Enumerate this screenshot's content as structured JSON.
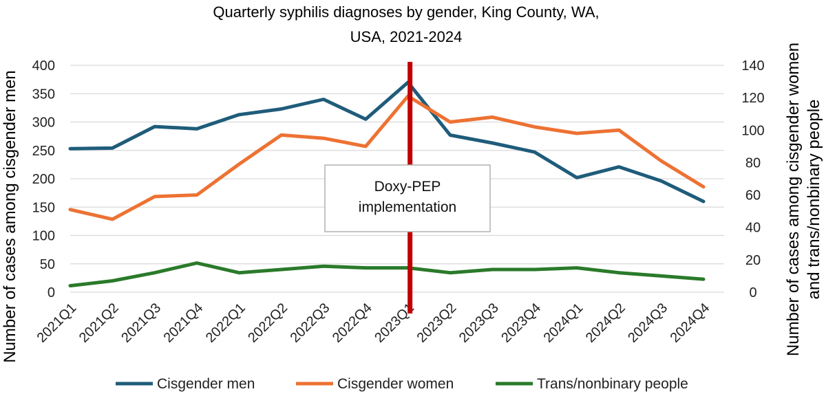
{
  "chart_data": {
    "type": "line",
    "title_lines": [
      "Quarterly syphilis diagnoses by gender, King County, WA,",
      "USA, 2021-2024"
    ],
    "categories": [
      "2021Q1",
      "2021Q2",
      "2021Q3",
      "2021Q4",
      "2022Q1",
      "2022Q2",
      "2022Q3",
      "2022Q4",
      "2023Q1",
      "2023Q2",
      "2023Q3",
      "2023Q4",
      "2024Q1",
      "2024Q2",
      "2024Q3",
      "2024Q4"
    ],
    "ylabel_left": "Number of cases among cisgender men",
    "ylabel_right_lines": [
      "Number of cases among cisgender women",
      "and trans/nonbinary people"
    ],
    "ylim_left": [
      0,
      400
    ],
    "yticks_left": [
      0,
      50,
      100,
      150,
      200,
      250,
      300,
      350,
      400
    ],
    "ylim_right": [
      0,
      140
    ],
    "yticks_right": [
      0,
      20,
      40,
      60,
      80,
      100,
      120,
      140
    ],
    "grid": true,
    "legend_position": "bottom",
    "series": [
      {
        "name": "Cisgender men",
        "axis": "left",
        "color": "#1f5c7a",
        "values": [
          253,
          254,
          292,
          288,
          313,
          323,
          340,
          305,
          370,
          277,
          263,
          247,
          202,
          221,
          196,
          160
        ]
      },
      {
        "name": "Cisgender women",
        "axis": "right",
        "color": "#ed7233",
        "values": [
          51,
          45,
          59,
          60,
          79,
          97,
          95,
          90,
          121,
          105,
          108,
          102,
          98,
          100,
          81,
          65
        ]
      },
      {
        "name": "Trans/nonbinary people",
        "axis": "right",
        "color": "#2a7a2a",
        "values": [
          4,
          7,
          12,
          18,
          12,
          14,
          16,
          15,
          15,
          12,
          14,
          14,
          15,
          12,
          10,
          8
        ]
      }
    ],
    "annotation": {
      "lines": [
        "Doxy-PEP",
        "implementation"
      ],
      "at_category": "2023Q1",
      "line_color": "#c00000"
    }
  }
}
